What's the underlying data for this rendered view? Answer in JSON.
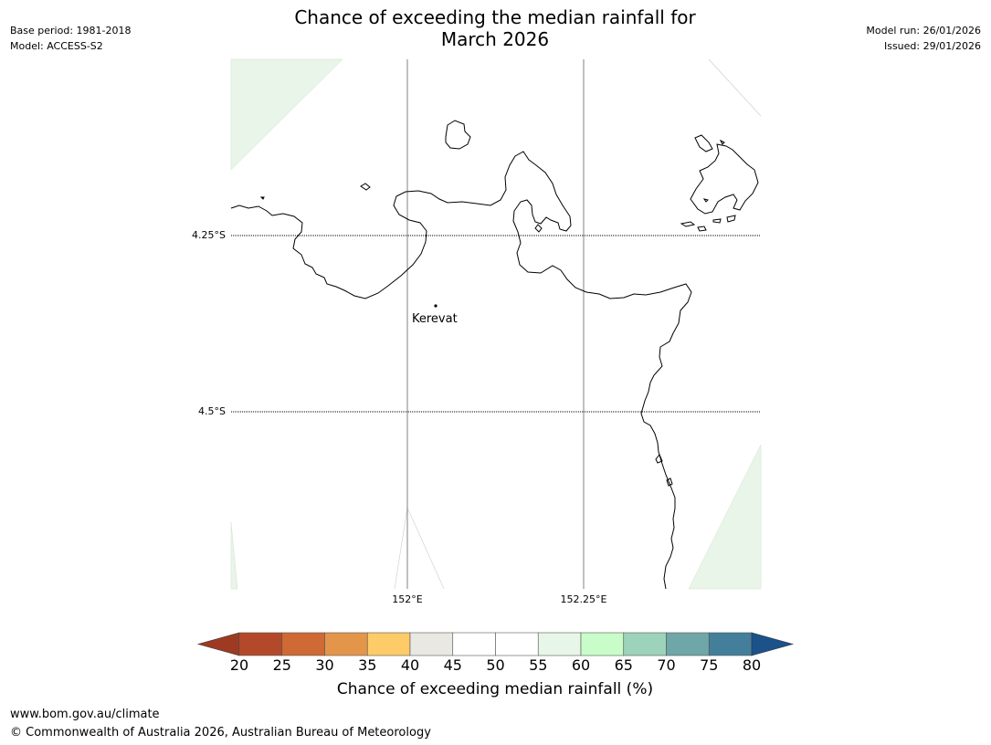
{
  "header": {
    "title_line1": "Chance of exceeding the median rainfall for",
    "title_line2": "March 2026",
    "base_period": "Base period: 1981-2018",
    "model": "Model: ACCESS-S2",
    "model_run": "Model run: 26/01/2026",
    "issued": "Issued: 29/01/2026"
  },
  "map": {
    "lat_labels": [
      "4.25°S",
      "4.5°S"
    ],
    "lon_labels": [
      "152°E",
      "152.25°E"
    ],
    "place": "Kerevat",
    "colors": {
      "coast": "#000000",
      "grid": "#808080",
      "fill_light_green": "#e8f5e8"
    }
  },
  "colorbar": {
    "ticks": [
      "20",
      "25",
      "30",
      "35",
      "40",
      "45",
      "50",
      "55",
      "60",
      "65",
      "70",
      "75",
      "80"
    ],
    "colors": [
      "#9e3a22",
      "#b4492a",
      "#cf6a34",
      "#e3954a",
      "#fdcb68",
      "#e9e8e3",
      "#ffffff",
      "#ffffff",
      "#e8f6e8",
      "#c8fcc9",
      "#9dd2bb",
      "#6fa6a7",
      "#437e9a",
      "#1a5289"
    ],
    "label": "Chance of exceeding median rainfall (%)"
  },
  "footer": {
    "url": "www.bom.gov.au/climate",
    "copyright": "© Commonwealth of Australia 2026, Australian Bureau of Meteorology"
  }
}
